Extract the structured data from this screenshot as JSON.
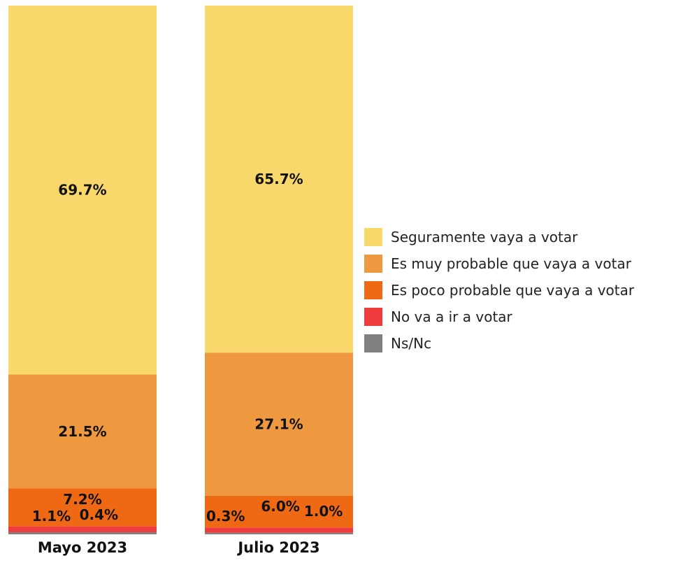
{
  "chart_data": {
    "type": "bar",
    "stacked": true,
    "categories": [
      "Mayo 2023",
      "Julio 2023"
    ],
    "ylim": [
      0,
      100
    ],
    "series": [
      {
        "name": "Seguramente vaya a votar",
        "color": "#F8D76B",
        "values": [
          69.7,
          65.7
        ],
        "labels": [
          "69.7%",
          "65.7%"
        ]
      },
      {
        "name": "Es muy probable que vaya a votar",
        "color": "#EE993F",
        "values": [
          21.5,
          27.1
        ],
        "labels": [
          "21.5%",
          "27.1%"
        ]
      },
      {
        "name": "Es poco probable que vaya a votar",
        "color": "#EF6914",
        "values": [
          7.2,
          6.0
        ],
        "labels": [
          "7.2%",
          "6.0%"
        ]
      },
      {
        "name": "No va a ir a votar",
        "color": "#EF3B3B",
        "values": [
          1.1,
          1.0
        ],
        "labels": [
          "1.1%",
          "1.0%"
        ]
      },
      {
        "name": "Ns/Nc",
        "color": "#808080",
        "values": [
          0.4,
          0.3
        ],
        "labels": [
          "0.4%",
          "0.3%"
        ]
      }
    ],
    "legend_position": "right"
  }
}
